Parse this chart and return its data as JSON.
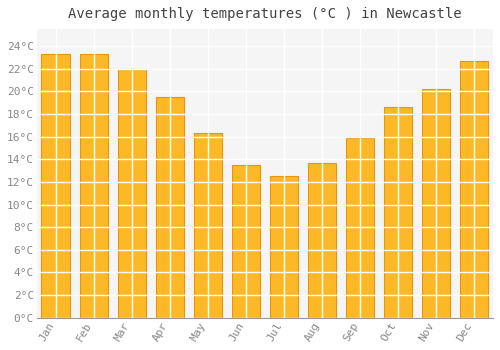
{
  "title": "Average monthly temperatures (°C ) in Newcastle",
  "months": [
    "Jan",
    "Feb",
    "Mar",
    "Apr",
    "May",
    "Jun",
    "Jul",
    "Aug",
    "Sep",
    "Oct",
    "Nov",
    "Dec"
  ],
  "values": [
    23.3,
    23.3,
    22.0,
    19.5,
    16.3,
    13.5,
    12.5,
    13.7,
    15.9,
    18.6,
    20.2,
    22.7
  ],
  "bar_color": "#FDB827",
  "bar_edge_color": "#E8950A",
  "background_color": "#FFFFFF",
  "plot_bg_color": "#F5F5F5",
  "grid_color": "#FFFFFF",
  "text_color": "#888888",
  "title_color": "#444444",
  "ylim": [
    0,
    25.5
  ],
  "yticks": [
    0,
    2,
    4,
    6,
    8,
    10,
    12,
    14,
    16,
    18,
    20,
    22,
    24
  ],
  "title_fontsize": 10,
  "tick_fontsize": 8,
  "bar_width": 0.75
}
